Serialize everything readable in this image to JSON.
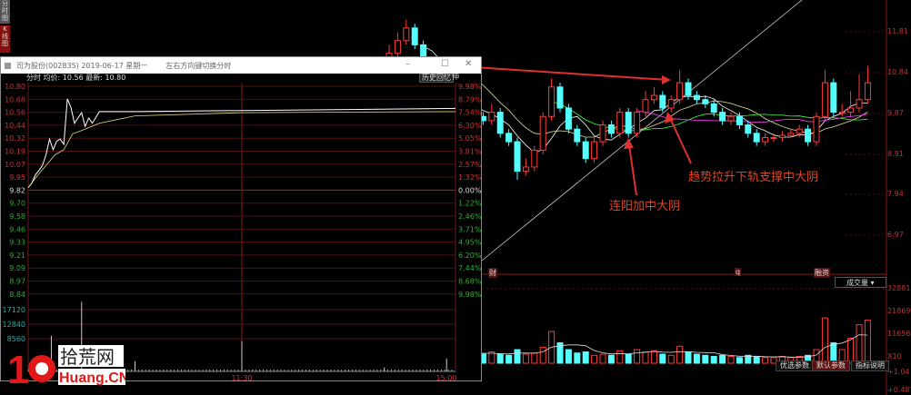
{
  "side_tabs": [
    "分时图",
    "K线图"
  ],
  "popup": {
    "title": "司为股份(002835) 2019-06-17 星期一",
    "hint": "左右方向键切换分时",
    "info": "分时 均价: 10.56 最新: 10.80",
    "history_button": "历史回忆",
    "pin_button": "伸",
    "price_labels": [
      "10.80",
      "10.68",
      "10.56",
      "10.44",
      "10.32",
      "10.19",
      "10.07",
      "9.95",
      "9.82",
      "9.70",
      "9.58",
      "9.46",
      "9.33",
      "9.21",
      "9.09",
      "8.97",
      "8.84"
    ],
    "pct_labels": [
      "9.98%",
      "8.79%",
      "7.54%",
      "6.30%",
      "5.05%",
      "3.81%",
      "2.57%",
      "1.32%",
      "0.00%",
      "1.22%",
      "2.46%",
      "3.71%",
      "4.95%",
      "6.20%",
      "7.44%",
      "8.68%",
      "9.98%"
    ],
    "vol_labels": [
      "17120",
      "12840",
      "8560"
    ],
    "time_labels": [
      "11:30",
      "15:00"
    ],
    "price_line": [
      [
        0,
        9.84
      ],
      [
        2,
        9.88
      ],
      [
        4,
        9.96
      ],
      [
        6,
        10.0
      ],
      [
        8,
        10.05
      ],
      [
        10,
        10.15
      ],
      [
        12,
        10.3
      ],
      [
        14,
        10.2
      ],
      [
        16,
        10.28
      ],
      [
        18,
        10.3
      ],
      [
        20,
        10.25
      ],
      [
        22,
        10.68
      ],
      [
        24,
        10.6
      ],
      [
        26,
        10.45
      ],
      [
        28,
        10.5
      ],
      [
        30,
        10.55
      ],
      [
        32,
        10.42
      ],
      [
        34,
        10.5
      ],
      [
        36,
        10.45
      ],
      [
        40,
        10.56
      ],
      [
        60,
        10.56
      ],
      [
        120,
        10.57
      ],
      [
        180,
        10.58
      ],
      [
        240,
        10.59
      ]
    ],
    "avg_line": [
      [
        0,
        9.84
      ],
      [
        5,
        9.95
      ],
      [
        10,
        10.05
      ],
      [
        15,
        10.15
      ],
      [
        20,
        10.2
      ],
      [
        25,
        10.35
      ],
      [
        30,
        10.38
      ],
      [
        40,
        10.45
      ],
      [
        60,
        10.52
      ],
      [
        120,
        10.55
      ],
      [
        240,
        10.56
      ]
    ],
    "volume_spikes": [
      [
        13,
        10500
      ],
      [
        30,
        20500
      ],
      [
        60,
        3000
      ],
      [
        120,
        9000
      ],
      [
        200,
        1200
      ],
      [
        235,
        3800
      ]
    ]
  },
  "kline": {
    "axis_labels": [
      "11.81",
      "10.84",
      "9.87",
      "8.91",
      "7.94",
      "6.97"
    ],
    "markers": [
      "财",
      "q",
      "融资"
    ],
    "candles": [
      [
        11.0,
        11.5,
        10.9,
        11.3
      ],
      [
        11.3,
        11.8,
        11.2,
        11.6
      ],
      [
        11.6,
        12.1,
        11.5,
        11.9
      ],
      [
        11.9,
        12.0,
        11.4,
        11.5
      ],
      [
        11.5,
        11.6,
        10.9,
        11.0
      ],
      [
        11.0,
        11.1,
        10.7,
        10.8
      ],
      [
        10.8,
        10.9,
        10.4,
        10.5
      ],
      [
        10.5,
        10.6,
        10.2,
        10.3
      ],
      [
        10.3,
        10.4,
        9.9,
        10.0
      ],
      [
        10.0,
        10.1,
        9.8,
        9.9
      ],
      [
        9.9,
        10.0,
        9.7,
        9.8
      ],
      [
        9.8,
        9.9,
        9.6,
        9.7
      ],
      [
        9.7,
        10.1,
        9.6,
        9.9
      ],
      [
        9.9,
        10.0,
        9.3,
        9.4
      ],
      [
        9.4,
        9.5,
        9.1,
        9.2
      ],
      [
        9.2,
        9.3,
        8.3,
        8.5
      ],
      [
        8.5,
        8.8,
        8.4,
        8.6
      ],
      [
        8.6,
        9.1,
        8.5,
        9.0
      ],
      [
        9.0,
        9.9,
        8.9,
        9.8
      ],
      [
        9.8,
        10.7,
        9.7,
        10.5
      ],
      [
        10.5,
        10.6,
        9.9,
        10.0
      ],
      [
        10.0,
        10.1,
        9.4,
        9.5
      ],
      [
        9.5,
        9.6,
        9.1,
        9.2
      ],
      [
        9.2,
        9.3,
        8.7,
        8.8
      ],
      [
        8.8,
        9.3,
        8.7,
        9.2
      ],
      [
        9.2,
        9.7,
        9.1,
        9.6
      ],
      [
        9.6,
        9.7,
        9.3,
        9.4
      ],
      [
        9.4,
        10.0,
        9.3,
        9.9
      ],
      [
        9.9,
        10.0,
        9.3,
        9.4
      ],
      [
        9.4,
        10.0,
        9.3,
        9.9
      ],
      [
        9.9,
        10.4,
        9.8,
        10.2
      ],
      [
        10.2,
        10.5,
        10.1,
        10.3
      ],
      [
        10.3,
        10.4,
        9.9,
        10.0
      ],
      [
        10.0,
        10.3,
        9.9,
        10.2
      ],
      [
        10.2,
        10.9,
        10.1,
        10.6
      ],
      [
        10.6,
        10.7,
        10.2,
        10.3
      ],
      [
        10.3,
        10.4,
        10.1,
        10.2
      ],
      [
        10.2,
        10.3,
        10.0,
        10.1
      ],
      [
        10.1,
        10.2,
        9.8,
        9.9
      ],
      [
        9.9,
        10.0,
        9.6,
        9.7
      ],
      [
        9.7,
        9.9,
        9.6,
        9.8
      ],
      [
        9.8,
        9.9,
        9.5,
        9.6
      ],
      [
        9.6,
        9.7,
        9.3,
        9.4
      ],
      [
        9.4,
        9.5,
        9.1,
        9.2
      ],
      [
        9.2,
        9.4,
        9.1,
        9.3
      ],
      [
        9.3,
        9.4,
        9.2,
        9.3
      ],
      [
        9.3,
        9.45,
        9.2,
        9.35
      ],
      [
        9.35,
        9.5,
        9.3,
        9.4
      ],
      [
        9.4,
        9.6,
        9.3,
        9.5
      ],
      [
        9.5,
        9.6,
        9.1,
        9.2
      ],
      [
        9.2,
        9.9,
        9.1,
        9.8
      ],
      [
        9.8,
        10.9,
        9.7,
        10.6
      ],
      [
        10.6,
        10.7,
        9.8,
        9.9
      ],
      [
        9.9,
        10.1,
        9.8,
        9.9
      ],
      [
        9.9,
        10.4,
        9.8,
        10.0
      ],
      [
        10.0,
        10.8,
        9.9,
        10.2
      ],
      [
        10.2,
        11.0,
        10.1,
        10.6
      ]
    ],
    "volumes": [
      9000,
      12000,
      15000,
      11000,
      9000,
      7000,
      6000,
      5000,
      5000,
      4000,
      4000,
      4000,
      5000,
      4000,
      3500,
      6000,
      4000,
      4500,
      7000,
      14000,
      9000,
      6000,
      4500,
      5000,
      3500,
      4000,
      3500,
      5500,
      4000,
      6000,
      5000,
      5500,
      4000,
      3500,
      7500,
      5000,
      4000,
      3500,
      3000,
      3500,
      3000,
      2500,
      3500,
      3000,
      2500,
      2500,
      3000,
      2500,
      3000,
      3500,
      6000,
      20000,
      9000,
      6000,
      11000,
      17000,
      19000
    ],
    "annotation_1": "连阳加中大阴",
    "annotation_2": "趋势拉升下轨支撑中大阴",
    "colors": {
      "up": "#ff3b3b",
      "down": "#54ffff",
      "ma": [
        "#ffffff",
        "#e0e0a0",
        "#40ff40",
        "#ff40ff"
      ]
    }
  },
  "volume_panel": {
    "selector": "成交量",
    "axis_labels": [
      "32881",
      "21869",
      "11656",
      "X10"
    ],
    "lower_labels": [
      "+1.04",
      "+0.487"
    ],
    "buttons": [
      "优选参数",
      "默认参数",
      "指标说明"
    ]
  },
  "watermark": {
    "text": "拾荒网",
    "domain": "Huang.CN",
    "number": "10"
  }
}
